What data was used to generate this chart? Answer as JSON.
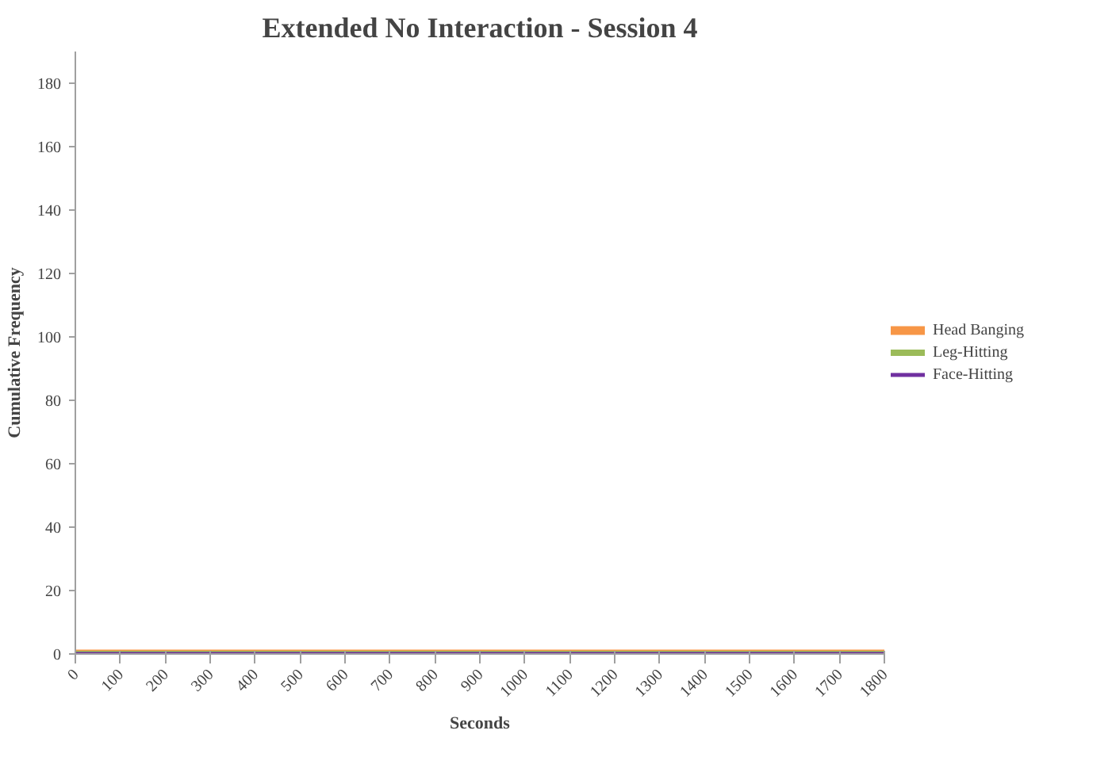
{
  "chart_data": {
    "type": "line",
    "title": "Extended No Interaction - Session 4",
    "xlabel": "Seconds",
    "ylabel": "Cumulative Frequency",
    "x": [
      0,
      1800
    ],
    "series": [
      {
        "name": "Head Banging",
        "color": "#f79646",
        "values": [
          0,
          0
        ]
      },
      {
        "name": "Leg-Hitting",
        "color": "#9bbb59",
        "values": [
          0,
          0
        ]
      },
      {
        "name": "Face-Hitting",
        "color": "#7030a0",
        "values": [
          0,
          0
        ]
      }
    ],
    "xlim": [
      0,
      1800
    ],
    "xticks": [
      0,
      100,
      200,
      300,
      400,
      500,
      600,
      700,
      800,
      900,
      1000,
      1100,
      1200,
      1300,
      1400,
      1500,
      1600,
      1700,
      1800
    ],
    "ylim": [
      0,
      190
    ],
    "yticks": [
      0,
      20,
      40,
      60,
      80,
      100,
      120,
      140,
      160,
      180
    ],
    "grid": false,
    "legend": "right",
    "marker": "none",
    "line_style": "solid"
  }
}
